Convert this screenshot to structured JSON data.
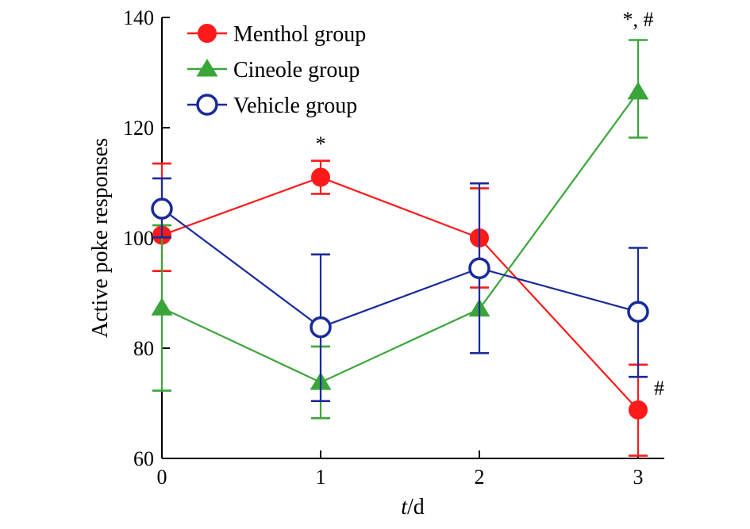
{
  "chart_data": {
    "type": "line",
    "xlabel_italic": "t",
    "xlabel_rest": "/d",
    "ylabel": "Active poke responses",
    "x": [
      0,
      1,
      2,
      3
    ],
    "xlim": [
      0,
      3.15
    ],
    "ylim": [
      60,
      140
    ],
    "yticks": [
      60,
      80,
      100,
      120,
      140
    ],
    "xticks": [
      0,
      1,
      2,
      3
    ],
    "grid": false,
    "legend_position": "top-left",
    "series": [
      {
        "name": "Menthol group",
        "color": "#ff1a1a",
        "marker": "filled-circle",
        "values": [
          100.5,
          111,
          100,
          68.8
        ],
        "err_low": [
          6.5,
          3,
          9,
          8.3
        ],
        "err_high": [
          13,
          3,
          9,
          8.2
        ]
      },
      {
        "name": "Cineole group",
        "color": "#3aa63a",
        "marker": "filled-triangle",
        "values": [
          87.3,
          73.8,
          87.1,
          126.5
        ],
        "err_low": [
          15,
          6.5,
          8,
          8.3
        ],
        "err_high": [
          15,
          6.5,
          8,
          9.4
        ]
      },
      {
        "name": "Vehicle group",
        "color": "#1a2a99",
        "marker": "open-circle",
        "values": [
          105.3,
          83.8,
          94.5,
          86.6
        ],
        "err_low": [
          5.2,
          13.4,
          15.4,
          11.8
        ],
        "err_high": [
          5.5,
          13.2,
          15.4,
          11.6
        ]
      }
    ],
    "annotations": [
      {
        "text": "*",
        "x": 1,
        "y": 115.8
      },
      {
        "text": "*, #",
        "x": 3,
        "y": 138.4
      },
      {
        "text": "#",
        "x": 3.13,
        "y": 71.5
      }
    ]
  }
}
